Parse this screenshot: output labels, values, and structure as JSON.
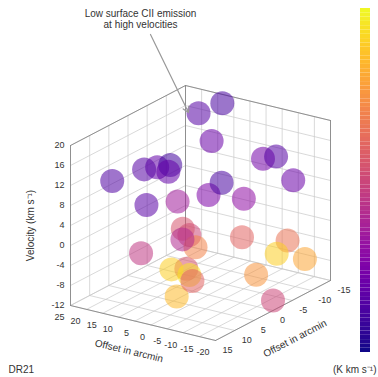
{
  "chart_data": {
    "type": "volume",
    "annotation": "Low surface CII emission\nat high velocities",
    "label": "DR21",
    "xlabel": "Offset in arcmin",
    "xlim": [
      -20,
      25
    ],
    "xticks": [
      25,
      20,
      15,
      10,
      5,
      0,
      -5,
      -10,
      -15,
      -20
    ],
    "ylabel": "Offset in arcmin",
    "ylim": [
      -15,
      15
    ],
    "yticks": [
      -15,
      -10,
      -5,
      0,
      5,
      10,
      15
    ],
    "zlabel": "Velocity (km s⁻¹)",
    "zlim": [
      -12,
      20
    ],
    "zticks": [
      -12,
      -8,
      -4,
      0,
      4,
      8,
      12,
      16,
      20
    ],
    "grid": true,
    "colorbar": {
      "label": "(K km s⁻¹)",
      "range": [
        0,
        100
      ]
    },
    "emission": [
      {
        "offset_1": 15,
        "offset_2": -10,
        "velocity": 18,
        "intensity": 15
      },
      {
        "offset_1": 5,
        "offset_2": -5,
        "velocity": 16,
        "intensity": 20
      },
      {
        "offset_1": 10,
        "offset_2": 5,
        "velocity": 14,
        "intensity": 18
      },
      {
        "offset_1": -5,
        "offset_2": -10,
        "velocity": 12,
        "intensity": 22
      },
      {
        "offset_1": 20,
        "offset_2": 0,
        "velocity": 10,
        "intensity": 15
      },
      {
        "offset_1": 0,
        "offset_2": 0,
        "velocity": 8,
        "intensity": 25
      },
      {
        "offset_1": -10,
        "offset_2": 5,
        "velocity": 14,
        "intensity": 12
      },
      {
        "offset_1": 10,
        "offset_2": -12,
        "velocity": 20,
        "intensity": 12
      },
      {
        "offset_1": -15,
        "offset_2": -5,
        "velocity": 16,
        "intensity": 15
      },
      {
        "offset_1": 18,
        "offset_2": 10,
        "velocity": 12,
        "intensity": 14
      },
      {
        "offset_1": 0,
        "offset_2": 10,
        "velocity": 18,
        "intensity": 10
      },
      {
        "offset_1": -5,
        "offset_2": -5,
        "velocity": 6,
        "intensity": 30
      },
      {
        "offset_1": 12,
        "offset_2": -2,
        "velocity": 4,
        "intensity": 35
      },
      {
        "offset_1": -12,
        "offset_2": -12,
        "velocity": 8,
        "intensity": 20
      },
      {
        "offset_1": 5,
        "offset_2": 12,
        "velocity": 10,
        "intensity": 16
      },
      {
        "offset_1": 22,
        "offset_2": -8,
        "velocity": 6,
        "intensity": 18
      },
      {
        "offset_1": 0,
        "offset_2": 5,
        "velocity": 2,
        "intensity": 50
      },
      {
        "offset_1": 8,
        "offset_2": 0,
        "velocity": 0,
        "intensity": 55
      },
      {
        "offset_1": -8,
        "offset_2": -2,
        "velocity": 0,
        "intensity": 60
      },
      {
        "offset_1": -15,
        "offset_2": -8,
        "velocity": -2,
        "intensity": 65
      },
      {
        "offset_1": 15,
        "offset_2": 5,
        "velocity": -4,
        "intensity": 45
      },
      {
        "offset_1": -5,
        "offset_2": 10,
        "velocity": -2,
        "intensity": 55
      },
      {
        "offset_1": 2,
        "offset_2": 8,
        "velocity": -4,
        "intensity": 90
      },
      {
        "offset_1": 0,
        "offset_2": 5,
        "velocity": -6,
        "intensity": 95
      },
      {
        "offset_1": -2,
        "offset_2": 10,
        "velocity": -8,
        "intensity": 85
      },
      {
        "offset_1": -14,
        "offset_2": -6,
        "velocity": -4,
        "intensity": 90
      },
      {
        "offset_1": -18,
        "offset_2": -10,
        "velocity": -6,
        "intensity": 80
      },
      {
        "offset_1": -10,
        "offset_2": -4,
        "velocity": -8,
        "intensity": 75
      },
      {
        "offset_1": 10,
        "offset_2": -5,
        "velocity": -6,
        "intensity": 70
      },
      {
        "offset_1": 5,
        "offset_2": 0,
        "velocity": -10,
        "intensity": 60
      },
      {
        "offset_1": -20,
        "offset_2": 0,
        "velocity": -10,
        "intensity": 50
      },
      {
        "offset_1": 20,
        "offset_2": -10,
        "velocity": -8,
        "intensity": 40
      }
    ]
  }
}
